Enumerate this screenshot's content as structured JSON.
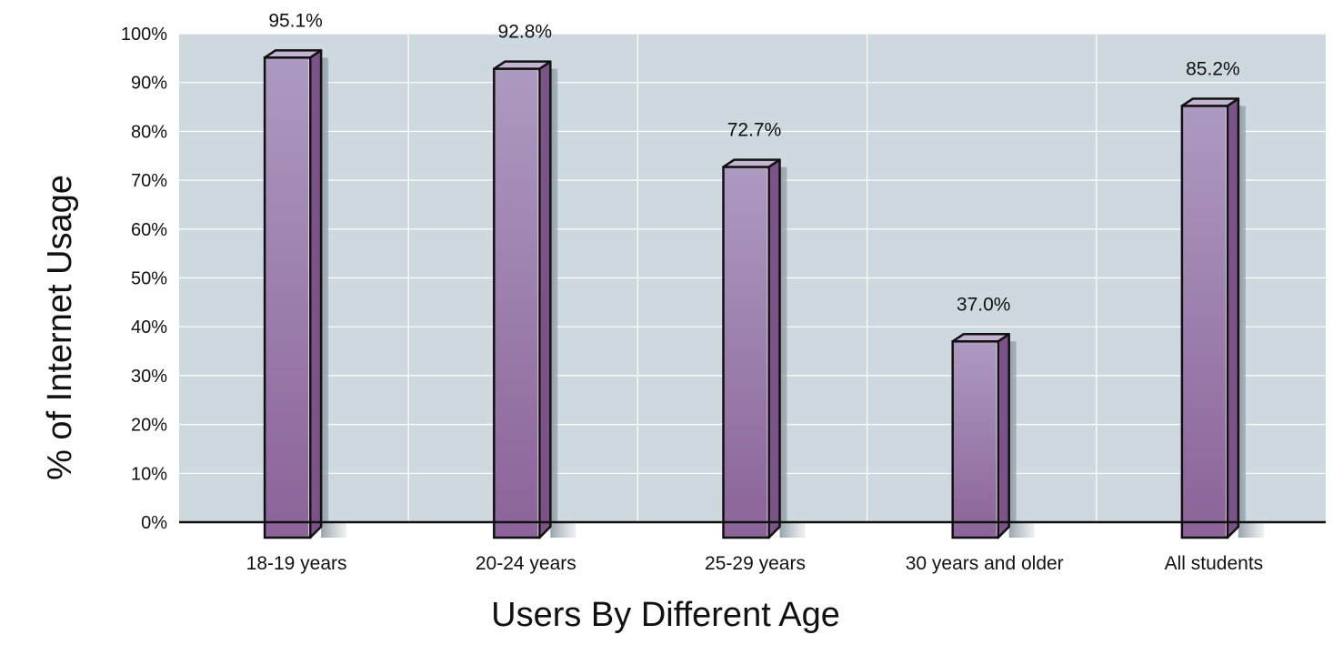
{
  "chart_data": {
    "type": "bar",
    "title": "",
    "xlabel": "Users By Different Age",
    "ylabel": "% of Internet Usage",
    "categories": [
      "18-19 years",
      "20-24 years",
      "25-29 years",
      "30 years and older",
      "All students"
    ],
    "values": [
      95.1,
      92.8,
      72.7,
      37.0,
      85.2
    ],
    "data_labels": [
      "95.1%",
      "92.8%",
      "72.7%",
      "37.0%",
      "85.2%"
    ],
    "ylim": [
      0,
      100
    ],
    "yticks": [
      0,
      10,
      20,
      30,
      40,
      50,
      60,
      70,
      80,
      90,
      100
    ],
    "ytick_labels": [
      "0%",
      "10%",
      "20%",
      "30%",
      "40%",
      "50%",
      "60%",
      "70%",
      "80%",
      "90%",
      "100%"
    ],
    "grid": true,
    "colors": {
      "plot_background": "#cdd8df",
      "bar_fill_top": "#ad9ac0",
      "bar_fill_bottom": "#8b6398",
      "bar_side": "#7b5388",
      "bar_top": "#c3b4d2",
      "bar_outline": "#111111",
      "gridline": "#ffffff"
    }
  }
}
